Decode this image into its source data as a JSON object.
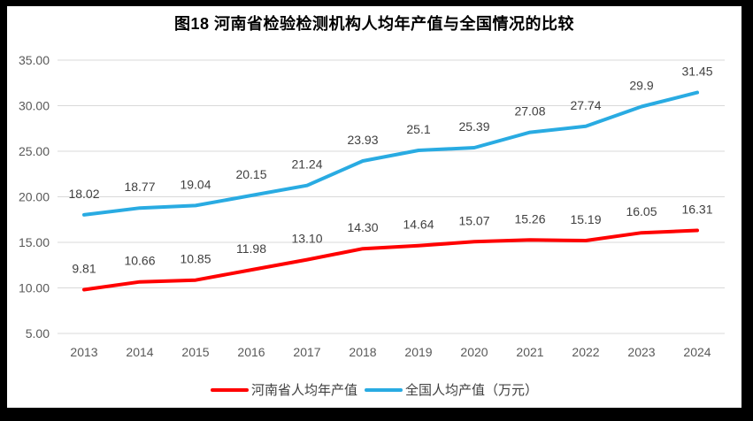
{
  "title": "图18  河南省检验检测机构人均年产值与全国情况的比较",
  "chart_data": {
    "type": "line",
    "title": "图18  河南省检验检测机构人均年产值与全国情况的比较",
    "xlabel": "",
    "ylabel": "",
    "categories": [
      "2013",
      "2014",
      "2015",
      "2016",
      "2017",
      "2018",
      "2019",
      "2020",
      "2021",
      "2022",
      "2023",
      "2024"
    ],
    "series": [
      {
        "name": "河南省人均年产值",
        "color": "#ff0000",
        "values": [
          9.81,
          10.66,
          10.85,
          11.98,
          13.1,
          14.3,
          14.64,
          15.07,
          15.26,
          15.19,
          16.05,
          16.31
        ],
        "labels": [
          "9.81",
          "10.66",
          "10.85",
          "11.98",
          "13.10",
          "14.30",
          "14.64",
          "15.07",
          "15.26",
          "15.19",
          "16.05",
          "16.31"
        ]
      },
      {
        "name": "全国人均产值（万元）",
        "color": "#29abe2",
        "values": [
          18.02,
          18.77,
          19.04,
          20.15,
          21.24,
          23.93,
          25.1,
          25.39,
          27.08,
          27.74,
          29.9,
          31.45
        ],
        "labels": [
          "18.02",
          "18.77",
          "19.04",
          "20.15",
          "21.24",
          "23.93",
          "25.1",
          "25.39",
          "27.08",
          "27.74",
          "29.9",
          "31.45"
        ]
      }
    ],
    "ylim": [
      5,
      35
    ],
    "ytick_step": 5,
    "ytick_decimals": 2,
    "grid": true,
    "legend_position": "bottom",
    "colors": {
      "gridline": "#d9d9d9",
      "axis_text": "#595959",
      "data_label_text": "#404040"
    }
  }
}
